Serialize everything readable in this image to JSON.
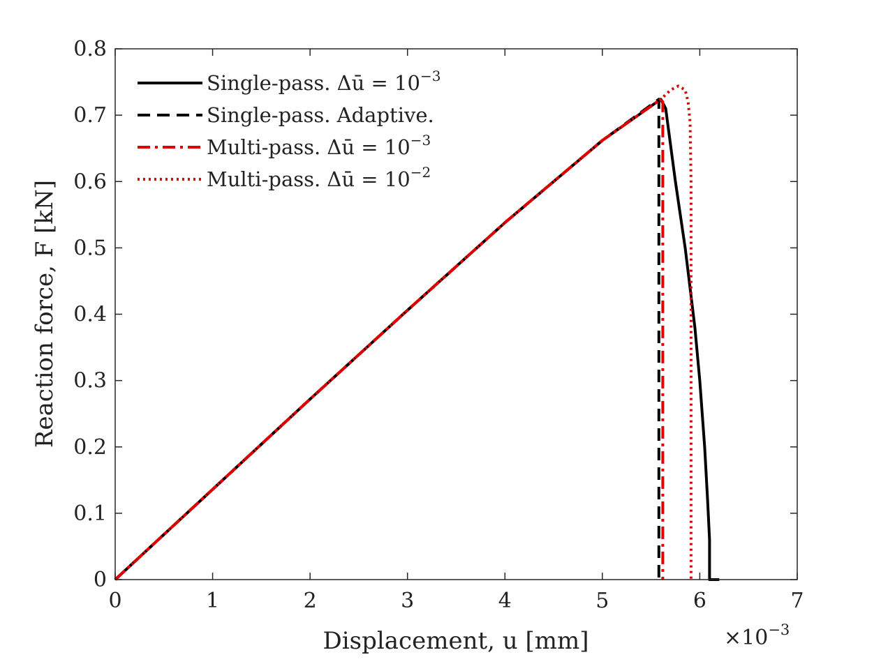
{
  "chart_data": {
    "type": "line",
    "title": "",
    "xlabel": "Displacement, u [mm]",
    "ylabel": "Reaction force, F [kN]",
    "x_multiplier_label": "×10",
    "x_multiplier_exponent": "−3",
    "xlim": [
      0,
      7
    ],
    "ylim": [
      0,
      0.8
    ],
    "xticks": [
      0,
      1,
      2,
      3,
      4,
      5,
      6,
      7
    ],
    "yticks": [
      0,
      0.1,
      0.2,
      0.3,
      0.4,
      0.5,
      0.6,
      0.7,
      0.8
    ],
    "xtick_labels": [
      "0",
      "1",
      "2",
      "3",
      "4",
      "5",
      "6",
      "7"
    ],
    "ytick_labels": [
      "0",
      "0.1",
      "0.2",
      "0.3",
      "0.4",
      "0.5",
      "0.6",
      "0.7",
      "0.8"
    ],
    "grid": false,
    "legend_position": "top-left",
    "series": [
      {
        "name": "Single-pass.  Δū = 10",
        "name_exponent": "−3",
        "color": "#000000",
        "style": "solid",
        "x": [
          0,
          1,
          2,
          3,
          4,
          5,
          5.6,
          5.65,
          5.75,
          5.85,
          5.95,
          6.0,
          6.05,
          6.08,
          6.1,
          6.1,
          6.2
        ],
        "y": [
          0,
          0.136,
          0.272,
          0.406,
          0.538,
          0.662,
          0.724,
          0.71,
          0.6,
          0.5,
          0.38,
          0.3,
          0.2,
          0.12,
          0.06,
          0.0,
          0.0
        ]
      },
      {
        "name": "Single-pass.  Adaptive.",
        "name_exponent": "",
        "color": "#000000",
        "style": "dashed",
        "x": [
          0,
          1,
          2,
          3,
          4,
          5,
          5.58,
          5.58
        ],
        "y": [
          0,
          0.136,
          0.272,
          0.406,
          0.538,
          0.662,
          0.724,
          0.0
        ]
      },
      {
        "name": "Multi-pass.  Δū = 10",
        "name_exponent": "−3",
        "color": "#e00000",
        "style": "dashdot",
        "x": [
          0,
          1,
          2,
          3,
          4,
          5,
          5.6,
          5.62,
          5.62
        ],
        "y": [
          0,
          0.136,
          0.272,
          0.406,
          0.538,
          0.662,
          0.724,
          0.72,
          0.0
        ]
      },
      {
        "name": "Multi-pass.  Δū = 10",
        "name_exponent": "−2",
        "color": "#e00000",
        "style": "dotted",
        "x": [
          0,
          1,
          2,
          3,
          4,
          5,
          5.6,
          5.7,
          5.78,
          5.85,
          5.88,
          5.9,
          5.91,
          5.91
        ],
        "y": [
          0,
          0.136,
          0.272,
          0.406,
          0.538,
          0.662,
          0.724,
          0.738,
          0.744,
          0.738,
          0.72,
          0.69,
          0.6,
          0.0
        ]
      }
    ]
  }
}
